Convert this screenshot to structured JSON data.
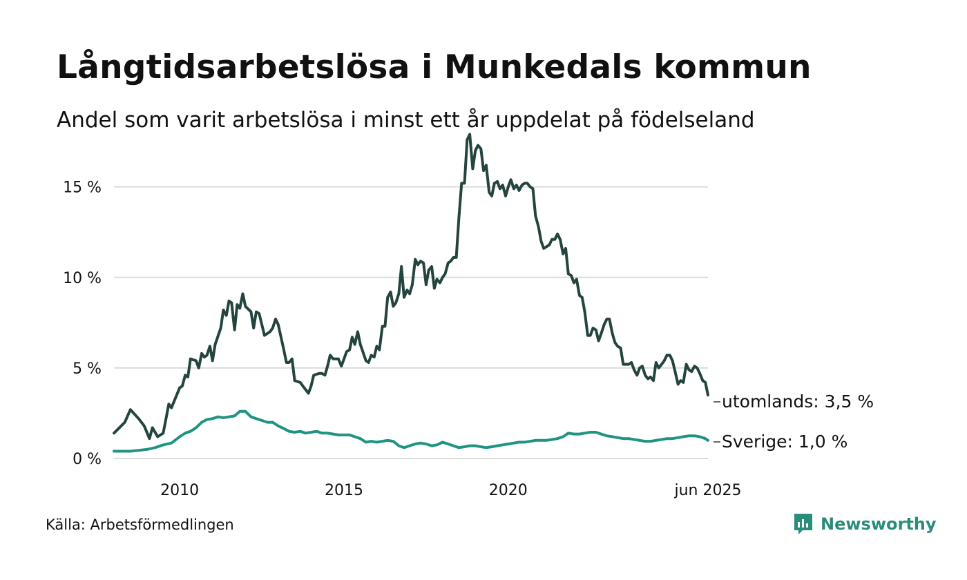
{
  "title": "Långtidsarbetslösa i Munkedals kommun",
  "subtitle": "Andel som varit arbetslösa i minst ett år uppdelat på födelseland",
  "source": "Källa: Arbetsförmedlingen",
  "brand": "Newsworthy",
  "colors": {
    "utomlands": "#24443f",
    "sverige": "#1f9482",
    "grid": "#dcdcdc",
    "brand": "#2a8c7a"
  },
  "chart_data": {
    "type": "line",
    "title": "Långtidsarbetslösa i Munkedals kommun",
    "subtitle": "Andel som varit arbetslösa i minst ett år uppdelat på födelseland",
    "x_unit": "year (monthly data)",
    "x_range": [
      2008.0,
      2025.42
    ],
    "ylim": [
      0,
      18
    ],
    "y_ticks": [
      0,
      5,
      10,
      15
    ],
    "y_tick_labels": [
      "0 %",
      "5 %",
      "10 %",
      "15 %"
    ],
    "x_ticks": [
      2010,
      2015,
      2020,
      2025.42
    ],
    "x_tick_labels": [
      "2010",
      "2015",
      "2020",
      "jun 2025"
    ],
    "grid": "horizontal",
    "series": [
      {
        "name": "utomlands",
        "end_label": "utomlands: 3,5 %",
        "points": [
          [
            2008.0,
            1.4
          ],
          [
            2008.33,
            2.0
          ],
          [
            2008.5,
            2.7
          ],
          [
            2008.75,
            2.2
          ],
          [
            2008.92,
            1.8
          ],
          [
            2009.08,
            1.1
          ],
          [
            2009.17,
            1.7
          ],
          [
            2009.33,
            1.2
          ],
          [
            2009.5,
            1.4
          ],
          [
            2009.67,
            3.0
          ],
          [
            2009.75,
            2.8
          ],
          [
            2010.0,
            3.9
          ],
          [
            2010.08,
            4.0
          ],
          [
            2010.17,
            4.6
          ],
          [
            2010.25,
            4.5
          ],
          [
            2010.33,
            5.5
          ],
          [
            2010.5,
            5.4
          ],
          [
            2010.58,
            5.0
          ],
          [
            2010.67,
            5.8
          ],
          [
            2010.75,
            5.6
          ],
          [
            2010.83,
            5.7
          ],
          [
            2010.92,
            6.2
          ],
          [
            2011.0,
            5.4
          ],
          [
            2011.08,
            6.3
          ],
          [
            2011.25,
            7.2
          ],
          [
            2011.33,
            8.2
          ],
          [
            2011.42,
            7.9
          ],
          [
            2011.5,
            8.7
          ],
          [
            2011.58,
            8.6
          ],
          [
            2011.67,
            7.1
          ],
          [
            2011.75,
            8.5
          ],
          [
            2011.83,
            8.3
          ],
          [
            2011.92,
            9.1
          ],
          [
            2012.0,
            8.4
          ],
          [
            2012.17,
            8.1
          ],
          [
            2012.25,
            7.2
          ],
          [
            2012.33,
            8.1
          ],
          [
            2012.42,
            8.0
          ],
          [
            2012.58,
            6.8
          ],
          [
            2012.75,
            7.0
          ],
          [
            2012.83,
            7.2
          ],
          [
            2012.92,
            7.7
          ],
          [
            2013.0,
            7.4
          ],
          [
            2013.17,
            6.0
          ],
          [
            2013.25,
            5.3
          ],
          [
            2013.33,
            5.3
          ],
          [
            2013.42,
            5.5
          ],
          [
            2013.5,
            4.3
          ],
          [
            2013.67,
            4.2
          ],
          [
            2013.75,
            4.0
          ],
          [
            2013.92,
            3.6
          ],
          [
            2014.0,
            4.0
          ],
          [
            2014.08,
            4.6
          ],
          [
            2014.25,
            4.7
          ],
          [
            2014.33,
            4.7
          ],
          [
            2014.42,
            4.6
          ],
          [
            2014.5,
            5.1
          ],
          [
            2014.58,
            5.7
          ],
          [
            2014.67,
            5.5
          ],
          [
            2014.75,
            5.5
          ],
          [
            2014.83,
            5.5
          ],
          [
            2014.92,
            5.1
          ],
          [
            2015.08,
            5.9
          ],
          [
            2015.17,
            6.0
          ],
          [
            2015.25,
            6.7
          ],
          [
            2015.33,
            6.3
          ],
          [
            2015.42,
            7.0
          ],
          [
            2015.5,
            6.3
          ],
          [
            2015.67,
            5.4
          ],
          [
            2015.75,
            5.3
          ],
          [
            2015.83,
            5.7
          ],
          [
            2015.92,
            5.6
          ],
          [
            2016.0,
            6.2
          ],
          [
            2016.08,
            6.0
          ],
          [
            2016.17,
            7.3
          ],
          [
            2016.25,
            7.3
          ],
          [
            2016.33,
            8.9
          ],
          [
            2016.42,
            9.2
          ],
          [
            2016.5,
            8.4
          ],
          [
            2016.58,
            8.6
          ],
          [
            2016.67,
            9.1
          ],
          [
            2016.75,
            10.6
          ],
          [
            2016.83,
            8.9
          ],
          [
            2016.92,
            9.3
          ],
          [
            2017.0,
            9.1
          ],
          [
            2017.08,
            9.6
          ],
          [
            2017.17,
            11.0
          ],
          [
            2017.25,
            10.7
          ],
          [
            2017.33,
            10.9
          ],
          [
            2017.42,
            10.8
          ],
          [
            2017.5,
            9.6
          ],
          [
            2017.58,
            10.4
          ],
          [
            2017.67,
            10.6
          ],
          [
            2017.75,
            9.4
          ],
          [
            2017.83,
            9.9
          ],
          [
            2017.92,
            9.7
          ],
          [
            2018.0,
            10.0
          ],
          [
            2018.08,
            10.2
          ],
          [
            2018.17,
            10.8
          ],
          [
            2018.25,
            10.9
          ],
          [
            2018.33,
            11.1
          ],
          [
            2018.42,
            11.1
          ],
          [
            2018.5,
            13.3
          ],
          [
            2018.58,
            15.2
          ],
          [
            2018.67,
            15.2
          ],
          [
            2018.75,
            17.6
          ],
          [
            2018.83,
            17.9
          ],
          [
            2018.92,
            16.0
          ],
          [
            2019.0,
            17.0
          ],
          [
            2019.08,
            17.3
          ],
          [
            2019.17,
            17.1
          ],
          [
            2019.25,
            15.9
          ],
          [
            2019.33,
            16.2
          ],
          [
            2019.42,
            14.7
          ],
          [
            2019.5,
            14.5
          ],
          [
            2019.58,
            15.2
          ],
          [
            2019.67,
            15.3
          ],
          [
            2019.75,
            14.9
          ],
          [
            2019.83,
            15.1
          ],
          [
            2019.92,
            14.5
          ],
          [
            2020.0,
            15.0
          ],
          [
            2020.08,
            15.4
          ],
          [
            2020.17,
            14.9
          ],
          [
            2020.25,
            15.1
          ],
          [
            2020.33,
            14.8
          ],
          [
            2020.42,
            15.1
          ],
          [
            2020.5,
            15.2
          ],
          [
            2020.58,
            15.2
          ],
          [
            2020.67,
            15.0
          ],
          [
            2020.75,
            14.9
          ],
          [
            2020.83,
            13.4
          ],
          [
            2020.92,
            12.8
          ],
          [
            2021.0,
            12.0
          ],
          [
            2021.08,
            11.6
          ],
          [
            2021.17,
            11.7
          ],
          [
            2021.25,
            11.8
          ],
          [
            2021.33,
            12.1
          ],
          [
            2021.42,
            12.1
          ],
          [
            2021.5,
            12.4
          ],
          [
            2021.58,
            12.1
          ],
          [
            2021.67,
            11.3
          ],
          [
            2021.75,
            11.6
          ],
          [
            2021.83,
            10.2
          ],
          [
            2021.92,
            10.1
          ],
          [
            2022.0,
            9.7
          ],
          [
            2022.08,
            9.9
          ],
          [
            2022.17,
            9.0
          ],
          [
            2022.25,
            8.9
          ],
          [
            2022.33,
            8.1
          ],
          [
            2022.42,
            6.8
          ],
          [
            2022.5,
            6.8
          ],
          [
            2022.58,
            7.2
          ],
          [
            2022.67,
            7.1
          ],
          [
            2022.75,
            6.5
          ],
          [
            2022.83,
            6.9
          ],
          [
            2022.92,
            7.4
          ],
          [
            2023.0,
            7.7
          ],
          [
            2023.08,
            7.7
          ],
          [
            2023.17,
            6.9
          ],
          [
            2023.25,
            6.4
          ],
          [
            2023.33,
            6.2
          ],
          [
            2023.42,
            6.1
          ],
          [
            2023.5,
            5.2
          ],
          [
            2023.58,
            5.2
          ],
          [
            2023.67,
            5.2
          ],
          [
            2023.75,
            5.3
          ],
          [
            2023.83,
            4.9
          ],
          [
            2023.92,
            4.6
          ],
          [
            2024.0,
            5.0
          ],
          [
            2024.08,
            5.1
          ],
          [
            2024.17,
            4.6
          ],
          [
            2024.25,
            4.4
          ],
          [
            2024.33,
            4.5
          ],
          [
            2024.42,
            4.3
          ],
          [
            2024.5,
            5.3
          ],
          [
            2024.58,
            5.0
          ],
          [
            2024.67,
            5.2
          ],
          [
            2024.75,
            5.4
          ],
          [
            2024.83,
            5.7
          ],
          [
            2024.92,
            5.7
          ],
          [
            2025.0,
            5.4
          ],
          [
            2025.08,
            4.8
          ],
          [
            2025.17,
            4.1
          ],
          [
            2025.25,
            4.3
          ],
          [
            2025.33,
            4.2
          ],
          [
            2025.42,
            5.2
          ],
          [
            2025.5,
            4.9
          ],
          [
            2025.58,
            4.8
          ],
          [
            2025.67,
            5.1
          ],
          [
            2025.75,
            5.0
          ],
          [
            2025.83,
            4.7
          ],
          [
            2025.92,
            4.3
          ],
          [
            2026.0,
            4.2
          ],
          [
            2026.08,
            3.5
          ]
        ]
      },
      {
        "name": "Sverige",
        "end_label": "Sverige: 1,0 %",
        "points": [
          [
            2008.0,
            0.4
          ],
          [
            2008.25,
            0.4
          ],
          [
            2008.5,
            0.4
          ],
          [
            2008.75,
            0.45
          ],
          [
            2009.0,
            0.5
          ],
          [
            2009.25,
            0.6
          ],
          [
            2009.5,
            0.75
          ],
          [
            2009.75,
            0.85
          ],
          [
            2010.0,
            1.2
          ],
          [
            2010.17,
            1.4
          ],
          [
            2010.33,
            1.5
          ],
          [
            2010.5,
            1.7
          ],
          [
            2010.67,
            2.0
          ],
          [
            2010.83,
            2.15
          ],
          [
            2011.0,
            2.2
          ],
          [
            2011.17,
            2.3
          ],
          [
            2011.33,
            2.25
          ],
          [
            2011.5,
            2.3
          ],
          [
            2011.67,
            2.35
          ],
          [
            2011.83,
            2.6
          ],
          [
            2012.0,
            2.6
          ],
          [
            2012.17,
            2.3
          ],
          [
            2012.33,
            2.2
          ],
          [
            2012.5,
            2.1
          ],
          [
            2012.67,
            2.0
          ],
          [
            2012.83,
            2.0
          ],
          [
            2013.0,
            1.8
          ],
          [
            2013.17,
            1.65
          ],
          [
            2013.33,
            1.5
          ],
          [
            2013.5,
            1.45
          ],
          [
            2013.67,
            1.5
          ],
          [
            2013.83,
            1.4
          ],
          [
            2014.0,
            1.45
          ],
          [
            2014.17,
            1.5
          ],
          [
            2014.33,
            1.4
          ],
          [
            2014.5,
            1.4
          ],
          [
            2014.67,
            1.35
          ],
          [
            2014.83,
            1.3
          ],
          [
            2015.0,
            1.3
          ],
          [
            2015.17,
            1.3
          ],
          [
            2015.33,
            1.2
          ],
          [
            2015.5,
            1.1
          ],
          [
            2015.67,
            0.9
          ],
          [
            2015.83,
            0.95
          ],
          [
            2016.0,
            0.9
          ],
          [
            2016.17,
            0.95
          ],
          [
            2016.33,
            1.0
          ],
          [
            2016.5,
            0.95
          ],
          [
            2016.67,
            0.7
          ],
          [
            2016.83,
            0.6
          ],
          [
            2017.0,
            0.7
          ],
          [
            2017.17,
            0.8
          ],
          [
            2017.33,
            0.85
          ],
          [
            2017.5,
            0.8
          ],
          [
            2017.67,
            0.7
          ],
          [
            2017.83,
            0.75
          ],
          [
            2018.0,
            0.9
          ],
          [
            2018.17,
            0.8
          ],
          [
            2018.33,
            0.7
          ],
          [
            2018.5,
            0.6
          ],
          [
            2018.67,
            0.65
          ],
          [
            2018.83,
            0.7
          ],
          [
            2019.0,
            0.7
          ],
          [
            2019.17,
            0.65
          ],
          [
            2019.33,
            0.6
          ],
          [
            2019.5,
            0.65
          ],
          [
            2019.67,
            0.7
          ],
          [
            2019.83,
            0.75
          ],
          [
            2020.0,
            0.8
          ],
          [
            2020.17,
            0.85
          ],
          [
            2020.33,
            0.9
          ],
          [
            2020.5,
            0.9
          ],
          [
            2020.67,
            0.95
          ],
          [
            2020.83,
            1.0
          ],
          [
            2021.0,
            1.0
          ],
          [
            2021.17,
            1.0
          ],
          [
            2021.33,
            1.05
          ],
          [
            2021.5,
            1.1
          ],
          [
            2021.67,
            1.2
          ],
          [
            2021.83,
            1.4
          ],
          [
            2022.0,
            1.35
          ],
          [
            2022.17,
            1.35
          ],
          [
            2022.33,
            1.4
          ],
          [
            2022.5,
            1.45
          ],
          [
            2022.67,
            1.45
          ],
          [
            2022.83,
            1.35
          ],
          [
            2023.0,
            1.25
          ],
          [
            2023.17,
            1.2
          ],
          [
            2023.33,
            1.15
          ],
          [
            2023.5,
            1.1
          ],
          [
            2023.67,
            1.1
          ],
          [
            2023.83,
            1.05
          ],
          [
            2024.0,
            1.0
          ],
          [
            2024.17,
            0.95
          ],
          [
            2024.33,
            0.95
          ],
          [
            2024.5,
            1.0
          ],
          [
            2024.67,
            1.05
          ],
          [
            2024.83,
            1.1
          ],
          [
            2025.0,
            1.1
          ],
          [
            2025.17,
            1.15
          ],
          [
            2025.33,
            1.2
          ],
          [
            2025.5,
            1.25
          ],
          [
            2025.67,
            1.25
          ],
          [
            2025.83,
            1.2
          ],
          [
            2026.0,
            1.1
          ],
          [
            2026.08,
            1.0
          ]
        ]
      }
    ]
  }
}
